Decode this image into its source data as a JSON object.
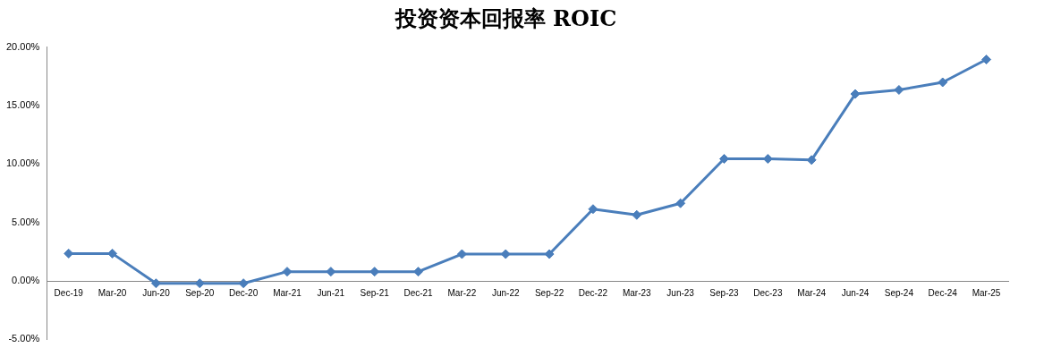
{
  "chart_data": {
    "type": "line",
    "title": "投资资本回报率 ROIC",
    "categories": [
      "Dec-19",
      "Mar-20",
      "Jun-20",
      "Sep-20",
      "Dec-20",
      "Mar-21",
      "Jun-21",
      "Sep-21",
      "Dec-21",
      "Mar-22",
      "Jun-22",
      "Sep-22",
      "Dec-22",
      "Mar-23",
      "Jun-23",
      "Sep-23",
      "Dec-23",
      "Mar-24",
      "Jun-24",
      "Sep-24",
      "Dec-24",
      "Mar-25"
    ],
    "series": [
      {
        "color": "#4a7ebb",
        "values": [
          2.35,
          2.35,
          -0.2,
          -0.2,
          -0.2,
          0.8,
          0.8,
          0.8,
          0.8,
          2.3,
          2.3,
          2.3,
          6.15,
          5.65,
          6.65,
          10.45,
          10.45,
          10.35,
          16.0,
          16.35,
          17.0,
          18.95
        ]
      }
    ],
    "ylim": [
      -5,
      20
    ],
    "yticks": [
      {
        "value": -5,
        "label": "-5.00%"
      },
      {
        "value": 0,
        "label": "0.00%"
      },
      {
        "value": 5,
        "label": "5.00%"
      },
      {
        "value": 10,
        "label": "10.00%"
      },
      {
        "value": 15,
        "label": "15.00%"
      },
      {
        "value": 20,
        "label": "20.00%"
      }
    ],
    "grid": false,
    "legend": false,
    "marker": "diamond",
    "line_style": "solid"
  }
}
